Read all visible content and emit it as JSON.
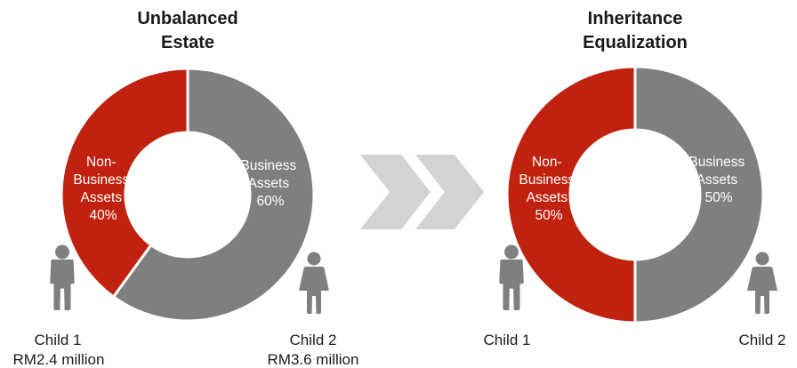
{
  "colors": {
    "non_business": "#c0220f",
    "business": "#7f7f7f",
    "arrow": "#d3d3d3",
    "person": "#7f7f7f"
  },
  "icons": [
    "person-male-icon",
    "person-female-icon",
    "double-chevron-arrow-icon"
  ],
  "chart_data": [
    {
      "type": "donut",
      "title_lines": [
        "Unbalanced",
        "Estate"
      ],
      "slices": [
        {
          "label_lines": [
            "Non-",
            "Business",
            "Assets",
            "40%"
          ],
          "value": 40,
          "color_key": "non_business"
        },
        {
          "label_lines": [
            "Business",
            "Assets",
            "60%"
          ],
          "value": 60,
          "color_key": "business"
        }
      ],
      "children": [
        {
          "name": "Child 1",
          "amount": "RM2.4 million",
          "icon": "person-male-icon"
        },
        {
          "name": "Child 2",
          "amount": "RM3.6 million",
          "icon": "person-female-icon"
        }
      ]
    },
    {
      "type": "donut",
      "title_lines": [
        "Inheritance",
        "Equalization"
      ],
      "slices": [
        {
          "label_lines": [
            "Non-",
            "Business",
            "Assets",
            "50%"
          ],
          "value": 50,
          "color_key": "non_business"
        },
        {
          "label_lines": [
            "Business",
            "Assets",
            "50%"
          ],
          "value": 50,
          "color_key": "business"
        }
      ],
      "children": [
        {
          "name": "Child 1",
          "amount": "",
          "icon": "person-male-icon"
        },
        {
          "name": "Child 2",
          "amount": "",
          "icon": "person-female-icon"
        }
      ]
    }
  ]
}
